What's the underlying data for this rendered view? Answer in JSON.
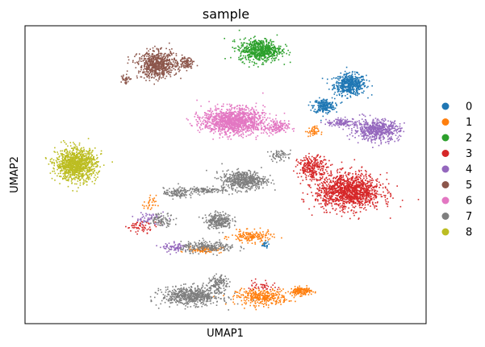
{
  "chart_data": {
    "type": "scatter",
    "title": "sample",
    "xlabel": "UMAP1",
    "ylabel": "UMAP2",
    "xticks": [],
    "yticks": [],
    "xlim": [
      0,
      100
    ],
    "ylim": [
      0,
      100
    ],
    "grid": false,
    "legend": "right",
    "series": [
      {
        "name": "0",
        "color": "#1f77b4",
        "clusters": [
          {
            "x": 80.9,
            "y": 80.5,
            "sx": 3.6,
            "sy": 3.2,
            "n": 520
          },
          {
            "x": 74.4,
            "y": 73.3,
            "sx": 2.4,
            "sy": 2.2,
            "n": 220
          },
          {
            "x": 59.5,
            "y": 26.7,
            "sx": 1.0,
            "sy": 1.0,
            "n": 25
          }
        ]
      },
      {
        "name": "1",
        "color": "#ff7f0e",
        "clusters": [
          {
            "x": 58.9,
            "y": 9.1,
            "sx": 5.8,
            "sy": 2.4,
            "n": 340
          },
          {
            "x": 68.6,
            "y": 11.1,
            "sx": 2.4,
            "sy": 1.3,
            "n": 140
          },
          {
            "x": 56.3,
            "y": 29.4,
            "sx": 4.6,
            "sy": 1.8,
            "n": 160
          },
          {
            "x": 44.6,
            "y": 25.1,
            "sx": 4.0,
            "sy": 1.0,
            "n": 90
          },
          {
            "x": 71.6,
            "y": 64.7,
            "sx": 1.4,
            "sy": 1.6,
            "n": 45
          },
          {
            "x": 31.0,
            "y": 40.4,
            "sx": 1.4,
            "sy": 2.6,
            "n": 30
          }
        ]
      },
      {
        "name": "2",
        "color": "#2ca02c",
        "clusters": [
          {
            "x": 58.5,
            "y": 92.0,
            "sx": 4.8,
            "sy": 3.4,
            "n": 620
          }
        ]
      },
      {
        "name": "3",
        "color": "#d62728",
        "clusters": [
          {
            "x": 80.5,
            "y": 44.6,
            "sx": 7.4,
            "sy": 5.4,
            "n": 1300
          },
          {
            "x": 71.6,
            "y": 52.7,
            "sx": 3.4,
            "sy": 3.4,
            "n": 260
          },
          {
            "x": 29.0,
            "y": 32.7,
            "sx": 3.4,
            "sy": 1.6,
            "n": 60
          },
          {
            "x": 58.9,
            "y": 13.1,
            "sx": 3.4,
            "sy": 1.6,
            "n": 40
          }
        ]
      },
      {
        "name": "4",
        "color": "#9467bd",
        "clusters": [
          {
            "x": 87.5,
            "y": 65.2,
            "sx": 5.2,
            "sy": 3.2,
            "n": 560
          },
          {
            "x": 79.0,
            "y": 67.7,
            "sx": 3.6,
            "sy": 1.2,
            "n": 120
          },
          {
            "x": 37.3,
            "y": 25.7,
            "sx": 2.8,
            "sy": 1.4,
            "n": 70
          },
          {
            "x": 30.8,
            "y": 35.6,
            "sx": 3.4,
            "sy": 1.8,
            "n": 60
          }
        ]
      },
      {
        "name": "5",
        "color": "#8c564b",
        "clusters": [
          {
            "x": 32.9,
            "y": 87.1,
            "sx": 4.4,
            "sy": 4.0,
            "n": 680
          },
          {
            "x": 40.1,
            "y": 88.0,
            "sx": 1.8,
            "sy": 1.8,
            "n": 90
          },
          {
            "x": 24.8,
            "y": 82.5,
            "sx": 1.0,
            "sy": 1.6,
            "n": 35
          }
        ]
      },
      {
        "name": "6",
        "color": "#e377c2",
        "clusters": [
          {
            "x": 51.8,
            "y": 68.2,
            "sx": 7.0,
            "sy": 4.0,
            "n": 1250
          },
          {
            "x": 62.5,
            "y": 66.0,
            "sx": 2.8,
            "sy": 2.0,
            "n": 140
          }
        ]
      },
      {
        "name": "7",
        "color": "#7f7f7f",
        "clusters": [
          {
            "x": 54.4,
            "y": 48.4,
            "sx": 5.0,
            "sy": 2.8,
            "n": 520
          },
          {
            "x": 44.0,
            "y": 45.0,
            "sx": 5.4,
            "sy": 1.0,
            "n": 120
          },
          {
            "x": 37.5,
            "y": 44.0,
            "sx": 2.8,
            "sy": 1.6,
            "n": 110
          },
          {
            "x": 48.1,
            "y": 34.8,
            "sx": 3.0,
            "sy": 2.4,
            "n": 260
          },
          {
            "x": 45.6,
            "y": 25.9,
            "sx": 6.2,
            "sy": 1.6,
            "n": 240
          },
          {
            "x": 41.3,
            "y": 9.5,
            "sx": 6.6,
            "sy": 2.8,
            "n": 620
          },
          {
            "x": 48.1,
            "y": 13.6,
            "sx": 2.0,
            "sy": 2.4,
            "n": 120
          },
          {
            "x": 33.9,
            "y": 35.1,
            "sx": 2.8,
            "sy": 2.0,
            "n": 90
          },
          {
            "x": 63.5,
            "y": 56.8,
            "sx": 2.6,
            "sy": 1.6,
            "n": 60
          }
        ]
      },
      {
        "name": "8",
        "color": "#bcbd22",
        "clusters": [
          {
            "x": 12.6,
            "y": 53.6,
            "sx": 4.6,
            "sy": 4.8,
            "n": 1100
          }
        ]
      }
    ]
  }
}
